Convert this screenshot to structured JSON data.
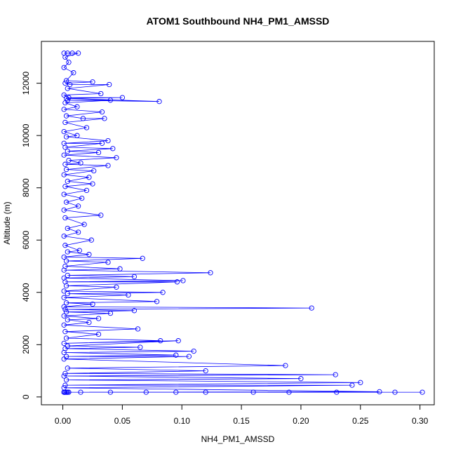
{
  "chart_data": {
    "type": "scatter",
    "title": "ATOM1 Southbound NH4_PM1_AMSSD",
    "xlabel": "NH4_PM1_AMSSD",
    "ylabel": "Altitude (m)",
    "xlim": [
      -0.018,
      0.312
    ],
    "ylim": [
      -300,
      13600
    ],
    "xticks": [
      0.0,
      0.05,
      0.1,
      0.15,
      0.2,
      0.25,
      0.3
    ],
    "xtick_labels": [
      "0.00",
      "0.05",
      "0.10",
      "0.15",
      "0.20",
      "0.25",
      "0.30"
    ],
    "yticks": [
      0,
      2000,
      4000,
      6000,
      8000,
      10000,
      12000
    ],
    "ytick_labels": [
      "0",
      "2000",
      "4000",
      "6000",
      "8000",
      "10000",
      "12000"
    ],
    "grid": false,
    "legend": "none",
    "series": [
      {
        "color": "#0000ff",
        "marker": "open-circle",
        "connect": true,
        "points": [
          [
            0.001,
            13150
          ],
          [
            0.004,
            13150
          ],
          [
            0.008,
            13150
          ],
          [
            0.013,
            13150
          ],
          [
            0.002,
            13000
          ],
          [
            0.005,
            12800
          ],
          [
            0.001,
            12600
          ],
          [
            0.009,
            12400
          ],
          [
            0.003,
            12100
          ],
          [
            0.025,
            12050
          ],
          [
            0.002,
            12000
          ],
          [
            0.006,
            11950
          ],
          [
            0.039,
            11950
          ],
          [
            0.004,
            11800
          ],
          [
            0.032,
            11600
          ],
          [
            0.001,
            11550
          ],
          [
            0.005,
            11450
          ],
          [
            0.05,
            11450
          ],
          [
            0.003,
            11420
          ],
          [
            0.081,
            11300
          ],
          [
            0.004,
            11350
          ],
          [
            0.04,
            11350
          ],
          [
            0.002,
            11250
          ],
          [
            0.012,
            11100
          ],
          [
            0.001,
            11000
          ],
          [
            0.033,
            10900
          ],
          [
            0.003,
            10750
          ],
          [
            0.017,
            10650
          ],
          [
            0.035,
            10650
          ],
          [
            0.002,
            10500
          ],
          [
            0.02,
            10300
          ],
          [
            0.001,
            10150
          ],
          [
            0.012,
            10000
          ],
          [
            0.003,
            9950
          ],
          [
            0.038,
            9800
          ],
          [
            0.001,
            9700
          ],
          [
            0.033,
            9700
          ],
          [
            0.002,
            9550
          ],
          [
            0.042,
            9500
          ],
          [
            0.004,
            9400
          ],
          [
            0.03,
            9350
          ],
          [
            0.001,
            9250
          ],
          [
            0.045,
            9150
          ],
          [
            0.005,
            9050
          ],
          [
            0.015,
            8950
          ],
          [
            0.002,
            8900
          ],
          [
            0.038,
            8850
          ],
          [
            0.003,
            8700
          ],
          [
            0.026,
            8650
          ],
          [
            0.001,
            8500
          ],
          [
            0.022,
            8400
          ],
          [
            0.004,
            8250
          ],
          [
            0.025,
            8150
          ],
          [
            0.002,
            8050
          ],
          [
            0.02,
            7900
          ],
          [
            0.001,
            7750
          ],
          [
            0.016,
            7600
          ],
          [
            0.003,
            7450
          ],
          [
            0.013,
            7300
          ],
          [
            0.001,
            7150
          ],
          [
            0.032,
            6950
          ],
          [
            0.002,
            6850
          ],
          [
            0.018,
            6600
          ],
          [
            0.004,
            6450
          ],
          [
            0.013,
            6300
          ],
          [
            0.001,
            6150
          ],
          [
            0.024,
            6000
          ],
          [
            0.002,
            5800
          ],
          [
            0.014,
            5600
          ],
          [
            0.004,
            5550
          ],
          [
            0.022,
            5450
          ],
          [
            0.001,
            5350
          ],
          [
            0.067,
            5300
          ],
          [
            0.003,
            5200
          ],
          [
            0.038,
            5150
          ],
          [
            0.002,
            5000
          ],
          [
            0.048,
            4900
          ],
          [
            0.001,
            4850
          ],
          [
            0.124,
            4750
          ],
          [
            0.004,
            4650
          ],
          [
            0.06,
            4600
          ],
          [
            0.001,
            4550
          ],
          [
            0.101,
            4450
          ],
          [
            0.002,
            4400
          ],
          [
            0.096,
            4400
          ],
          [
            0.003,
            4250
          ],
          [
            0.045,
            4200
          ],
          [
            0.001,
            4050
          ],
          [
            0.084,
            4000
          ],
          [
            0.004,
            3950
          ],
          [
            0.055,
            3900
          ],
          [
            0.001,
            3800
          ],
          [
            0.079,
            3650
          ],
          [
            0.003,
            3600
          ],
          [
            0.025,
            3550
          ],
          [
            0.001,
            3450
          ],
          [
            0.209,
            3400
          ],
          [
            0.002,
            3350
          ],
          [
            0.06,
            3300
          ],
          [
            0.003,
            3250
          ],
          [
            0.04,
            3200
          ],
          [
            0.001,
            3100
          ],
          [
            0.03,
            3000
          ],
          [
            0.004,
            2950
          ],
          [
            0.022,
            2850
          ],
          [
            0.001,
            2750
          ],
          [
            0.063,
            2600
          ],
          [
            0.002,
            2500
          ],
          [
            0.03,
            2400
          ],
          [
            0.003,
            2250
          ],
          [
            0.082,
            2150
          ],
          [
            0.001,
            2050
          ],
          [
            0.097,
            2150
          ],
          [
            0.004,
            1950
          ],
          [
            0.065,
            1900
          ],
          [
            0.002,
            1850
          ],
          [
            0.11,
            1750
          ],
          [
            0.001,
            1700
          ],
          [
            0.095,
            1600
          ],
          [
            0.003,
            1550
          ],
          [
            0.106,
            1550
          ],
          [
            0.001,
            1450
          ],
          [
            0.187,
            1200
          ],
          [
            0.004,
            1100
          ],
          [
            0.12,
            1000
          ],
          [
            0.002,
            900
          ],
          [
            0.229,
            850
          ],
          [
            0.001,
            800
          ],
          [
            0.2,
            700
          ],
          [
            0.003,
            650
          ],
          [
            0.25,
            550
          ],
          [
            0.002,
            450
          ],
          [
            0.243,
            450
          ],
          [
            0.001,
            350
          ],
          [
            0.266,
            200
          ],
          [
            0.003,
            180
          ],
          [
            0.302,
            180
          ],
          [
            0.002,
            180
          ],
          [
            0.279,
            180
          ],
          [
            0.004,
            180
          ],
          [
            0.23,
            180
          ],
          [
            0.001,
            180
          ],
          [
            0.19,
            180
          ],
          [
            0.005,
            180
          ],
          [
            0.16,
            180
          ],
          [
            0.002,
            180
          ],
          [
            0.12,
            180
          ],
          [
            0.003,
            180
          ],
          [
            0.095,
            180
          ],
          [
            0.001,
            180
          ],
          [
            0.07,
            180
          ],
          [
            0.004,
            180
          ],
          [
            0.04,
            180
          ],
          [
            0.002,
            180
          ],
          [
            0.015,
            180
          ],
          [
            0.001,
            180
          ]
        ]
      }
    ]
  }
}
